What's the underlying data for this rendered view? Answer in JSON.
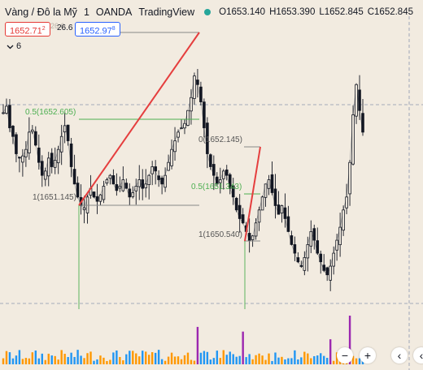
{
  "header": {
    "symbol": "Vàng / Đô la Mỹ",
    "interval": "1",
    "broker": "OANDA",
    "platform": "TradingView",
    "open_label": "O",
    "open": "1653.140",
    "high_label": "H",
    "high": "1653.390",
    "low_label": "L",
    "low": "1652.845",
    "close_label": "C",
    "close": "1652.845"
  },
  "trade": {
    "sell_price": "1652.71",
    "sell_sup": "2",
    "buy_price": "1652.97",
    "buy_sup": "8",
    "spread": "26.6",
    "spread_ghost": "26.6"
  },
  "indicators_count": "6",
  "controls": {
    "zoom_out": "−",
    "zoom_in": "+",
    "scroll_left": "‹",
    "scroll_right": "‹"
  },
  "colors": {
    "up_candle": "#131722",
    "down_candle": "#131722",
    "trend_line": "#e53e3e",
    "fib_level": "#4caf50",
    "volume_up": "#ff9800",
    "volume_down": "#2196f3",
    "volume_spike": "#9c27b0",
    "crosshair": "#5b6b8c"
  },
  "chart_data": {
    "type": "candlestick",
    "series": "XAUUSD 1-minute (shape approximated)",
    "price_range": [
      1649.4,
      1655.5
    ],
    "candles_close_path": [
      1653.55,
      1653.7,
      1653.2,
      1653.0,
      1652.6,
      1652.5,
      1652.55,
      1652.7,
      1653.1,
      1653.15,
      1652.8,
      1652.4,
      1652.1,
      1652.2,
      1652.5,
      1652.3,
      1652.45,
      1652.7,
      1653.0,
      1653.25,
      1652.9,
      1652.3,
      1651.9,
      1651.6,
      1651.4,
      1651.35,
      1651.6,
      1651.8,
      1651.6,
      1651.5,
      1651.65,
      1651.85,
      1652.0,
      1652.1,
      1651.9,
      1651.75,
      1651.85,
      1652.0,
      1651.8,
      1651.6,
      1651.7,
      1651.85,
      1652.0,
      1651.8,
      1651.9,
      1652.1,
      1652.3,
      1652.2,
      1652.0,
      1651.9,
      1652.1,
      1652.4,
      1652.7,
      1652.9,
      1653.1,
      1653.2,
      1653.3,
      1653.6,
      1653.9,
      1654.4,
      1654.2,
      1653.8,
      1653.2,
      1652.6,
      1652.3,
      1652.1,
      1651.9,
      1652.0,
      1652.2,
      1652.1,
      1651.8,
      1651.6,
      1651.3,
      1651.1,
      1651.0,
      1650.8,
      1650.6,
      1650.7,
      1651.0,
      1651.3,
      1651.6,
      1651.9,
      1652.0,
      1651.7,
      1651.4,
      1651.2,
      1651.4,
      1651.1,
      1650.8,
      1650.5,
      1650.3,
      1650.1,
      1650.0,
      1650.2,
      1650.5,
      1650.8,
      1650.6,
      1650.3,
      1650.1,
      1649.9,
      1649.8,
      1650.0,
      1650.3,
      1650.6,
      1650.9,
      1651.3,
      1651.6,
      1652.4,
      1653.5,
      1654.2,
      1653.6,
      1653.1
    ]
  },
  "fib": {
    "levels": [
      {
        "label": "0.5(1652.605)"
      },
      {
        "label": "1(1651.145)"
      },
      {
        "label": "0(1652.145)"
      },
      {
        "label": "0.5(1651.343)"
      },
      {
        "label": "1(1650.540)"
      }
    ]
  }
}
